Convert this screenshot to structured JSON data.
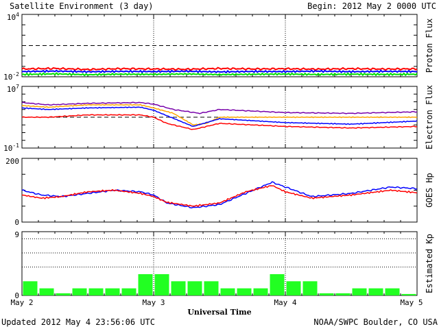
{
  "header": {
    "title": "Satellite Environment (3 day)",
    "begin": "Begin:  2012 May 2 0000 UTC"
  },
  "footer": {
    "updated": "Updated 2012 May  4 23:56:06 UTC",
    "source": "NOAA/SWPC Boulder, CO USA"
  },
  "chart_data": [
    {
      "type": "line",
      "ylabel": "Proton Flux",
      "y_scale": "log",
      "ylim_exp": [
        -2,
        4
      ],
      "y_ticklabels": [
        {
          "base": "10",
          "exp": "4"
        },
        {
          "base": "10",
          "exp": "-2"
        }
      ],
      "threshold_exp": 1,
      "series": [
        {
          "color": "#ff0000",
          "values_exp": [
            -1.25,
            -1.2,
            -1.3,
            -1.22,
            -1.25,
            -1.28,
            -1.2,
            -1.25,
            -1.23,
            -1.27,
            -1.22,
            -1.26,
            -1.24
          ]
        },
        {
          "color": "#0000ff",
          "values_exp": [
            -1.5,
            -1.45,
            -1.52,
            -1.48,
            -1.5,
            -1.47,
            -1.53,
            -1.49,
            -1.5,
            -1.46,
            -1.51,
            -1.48,
            -1.5
          ]
        },
        {
          "color": "#00dd00",
          "values_exp": [
            -1.78,
            -1.72,
            -1.8,
            -1.75,
            -1.77,
            -1.73,
            -1.79,
            -1.76,
            -1.74,
            -1.78,
            -1.75,
            -1.77,
            -1.76
          ]
        }
      ]
    },
    {
      "type": "line",
      "ylabel": "Electron Flux",
      "y_scale": "log",
      "ylim_exp": [
        -1,
        7
      ],
      "y_ticklabels": [
        {
          "base": "10",
          "exp": "7"
        },
        {
          "base": "10",
          "exp": "-1"
        }
      ],
      "threshold_exp": 3,
      "series": [
        {
          "color": "#7700aa",
          "x": [
            0,
            0.2,
            0.5,
            0.9,
            1.0,
            1.15,
            1.35,
            1.5,
            2.0,
            2.5,
            3.0
          ],
          "values_exp": [
            4.9,
            4.6,
            4.8,
            4.9,
            4.7,
            4.0,
            3.5,
            4.0,
            3.6,
            3.5,
            3.7
          ]
        },
        {
          "color": "#ffa500",
          "x": [
            0,
            0.2,
            0.5,
            0.9,
            1.0,
            1.15,
            1.3,
            1.4,
            1.5,
            2.0,
            2.5,
            3.0
          ],
          "values_exp": [
            4.5,
            4.3,
            4.6,
            4.6,
            4.2,
            3.5,
            2.0,
            2.2,
            3.0,
            3.0,
            3.0,
            3.0
          ]
        },
        {
          "color": "#0000ff",
          "x": [
            0,
            0.2,
            0.5,
            0.9,
            1.0,
            1.1,
            1.3,
            1.5,
            2.0,
            2.5,
            3.0
          ],
          "values_exp": [
            4.2,
            4.0,
            4.2,
            4.3,
            3.9,
            3.2,
            1.8,
            2.8,
            2.3,
            2.1,
            2.5
          ]
        },
        {
          "color": "#ff0000",
          "x": [
            0,
            0.2,
            0.5,
            0.9,
            1.0,
            1.1,
            1.3,
            1.5,
            2.0,
            2.5,
            3.0
          ],
          "values_exp": [
            3.0,
            3.0,
            3.3,
            3.3,
            3.0,
            2.2,
            1.4,
            2.2,
            1.8,
            1.6,
            1.8
          ]
        }
      ]
    },
    {
      "type": "line",
      "ylabel": "GOES Hp",
      "ylim": [
        0,
        200
      ],
      "y_ticklabels": [
        "200",
        "0"
      ],
      "series": [
        {
          "color": "#0000ff",
          "x": [
            0,
            0.15,
            0.3,
            0.5,
            0.7,
            0.9,
            1.0,
            1.1,
            1.3,
            1.5,
            1.7,
            1.9,
            2.0,
            2.2,
            2.5,
            2.8,
            3.0
          ],
          "values": [
            100,
            85,
            80,
            90,
            100,
            95,
            85,
            60,
            45,
            55,
            90,
            125,
            110,
            80,
            90,
            110,
            105
          ]
        },
        {
          "color": "#ff0000",
          "x": [
            0,
            0.15,
            0.3,
            0.5,
            0.7,
            0.9,
            1.0,
            1.1,
            1.3,
            1.5,
            1.7,
            1.9,
            2.0,
            2.2,
            2.5,
            2.8,
            3.0
          ],
          "values": [
            85,
            75,
            80,
            95,
            100,
            90,
            80,
            62,
            50,
            60,
            95,
            115,
            95,
            75,
            85,
            100,
            92
          ]
        }
      ]
    },
    {
      "type": "bar",
      "ylabel": "Estimated Kp",
      "ylim": [
        0,
        9
      ],
      "y_ticklabels": [
        "9",
        "0"
      ],
      "guides": [
        4,
        6,
        8
      ],
      "bar_color": "#22ff22",
      "values": [
        2.0,
        1.0,
        0.3,
        1.0,
        1.0,
        1.0,
        1.0,
        3.0,
        3.0,
        2.0,
        2.0,
        2.0,
        1.0,
        1.0,
        1.0,
        3.0,
        2.0,
        2.0,
        0.3,
        0.3,
        1.0,
        1.0,
        1.0,
        0.2
      ]
    }
  ],
  "x_axis": {
    "ticks": [
      "May 2",
      "May 3",
      "May 4",
      "May 5"
    ],
    "label": "Universal Time"
  }
}
